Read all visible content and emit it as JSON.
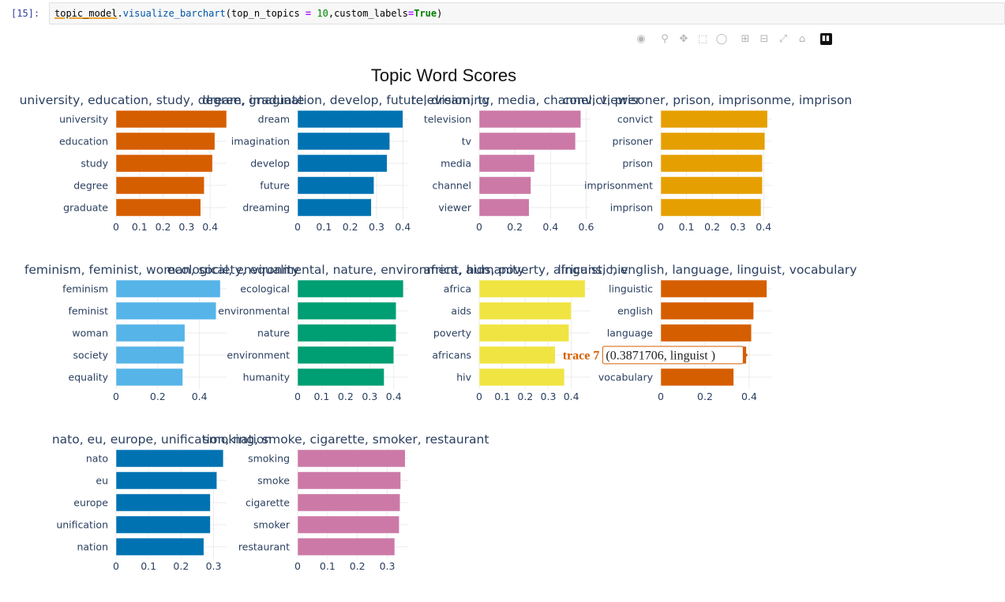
{
  "cell": {
    "prompt": "[15]:",
    "code_var": "topic_model",
    "code_dot": ".",
    "code_fn": "visualize_barchart",
    "code_arg1": "(top_n_topics ",
    "code_eq1": "=",
    "code_num": " 10",
    "code_arg2": ",custom_labels",
    "code_eq2": "=",
    "code_true": "True",
    "code_close": ")"
  },
  "modebar": {
    "icons": [
      "camera-icon",
      "zoom-icon",
      "pan-icon",
      "box-select-icon",
      "lasso-icon",
      "zoom-in-icon",
      "zoom-out-icon",
      "autoscale-icon",
      "reset-axes-icon",
      "plotly-logo-icon"
    ]
  },
  "chart_data": {
    "type": "bar",
    "orientation": "horizontal",
    "title": "Topic Word Scores",
    "grid": true,
    "hover": {
      "trace": "trace 7",
      "text": "(0.3871706, linguist  )"
    },
    "subplots": [
      {
        "subtitle": "university, education, study, degree, graduate",
        "color": "#D55E00",
        "words": [
          "university",
          "education",
          "study",
          "degree",
          "graduate"
        ],
        "values": [
          0.47,
          0.42,
          0.41,
          0.375,
          0.36
        ],
        "xlim": [
          0,
          0.47
        ],
        "xticks": [
          "0",
          "0.1",
          "0.2",
          "0.3",
          "0.4"
        ],
        "xtick_values": [
          0,
          0.1,
          0.2,
          0.3,
          0.4
        ]
      },
      {
        "subtitle": "dream, imagination, develop, future, dreaming",
        "color": "#0072B2",
        "words": [
          "dream",
          "imagination",
          "develop",
          "future",
          "dreaming"
        ],
        "values": [
          0.4,
          0.35,
          0.34,
          0.29,
          0.28
        ],
        "xlim": [
          0,
          0.42
        ],
        "xticks": [
          "0",
          "0.1",
          "0.2",
          "0.3",
          "0.4"
        ],
        "xtick_values": [
          0,
          0.1,
          0.2,
          0.3,
          0.4
        ]
      },
      {
        "subtitle": "television, tv, media, channel, viewer",
        "color": "#CC79A7",
        "words": [
          "television",
          "tv",
          "media",
          "channel",
          "viewer"
        ],
        "values": [
          0.57,
          0.54,
          0.31,
          0.29,
          0.28
        ],
        "xlim": [
          0,
          0.62
        ],
        "xticks": [
          "0",
          "0.2",
          "0.4",
          "0.6"
        ],
        "xtick_values": [
          0,
          0.2,
          0.4,
          0.6
        ]
      },
      {
        "subtitle": "convict, prisoner, prison, imprisonme, imprison",
        "color": "#E69F00",
        "words": [
          "convict",
          "prisoner",
          "prison",
          "imprisonment",
          "imprison"
        ],
        "values": [
          0.415,
          0.405,
          0.395,
          0.395,
          0.39
        ],
        "xlim": [
          0,
          0.43
        ],
        "xticks": [
          "0",
          "0.1",
          "0.2",
          "0.3",
          "0.4"
        ],
        "xtick_values": [
          0,
          0.1,
          0.2,
          0.3,
          0.4
        ]
      },
      {
        "subtitle": "feminism, feminist, woman, society, equality",
        "color": "#56B4E9",
        "words": [
          "feminism",
          "feminist",
          "woman",
          "society",
          "equality"
        ],
        "values": [
          0.5,
          0.48,
          0.33,
          0.325,
          0.32
        ],
        "xlim": [
          0,
          0.53
        ],
        "xticks": [
          "0",
          "0.2",
          "0.4"
        ],
        "xtick_values": [
          0,
          0.2,
          0.4
        ]
      },
      {
        "subtitle": "ecological, environmental, nature, environment, humanity",
        "color": "#009E73",
        "words": [
          "ecological",
          "environmental",
          "nature",
          "environment",
          "humanity"
        ],
        "values": [
          0.44,
          0.41,
          0.41,
          0.4,
          0.36
        ],
        "xlim": [
          0,
          0.46
        ],
        "xticks": [
          "0",
          "0.1",
          "0.2",
          "0.3",
          "0.4"
        ],
        "xtick_values": [
          0,
          0.1,
          0.2,
          0.3,
          0.4
        ]
      },
      {
        "subtitle": "africa, aids, poverty, africans, hiv",
        "color": "#F0E442",
        "words": [
          "africa",
          "aids",
          "poverty",
          "africans",
          "hiv"
        ],
        "values": [
          0.46,
          0.4,
          0.39,
          0.33,
          0.37
        ],
        "xlim": [
          0,
          0.48
        ],
        "xticks": [
          "0",
          "0.1",
          "0.2",
          "0.3",
          "0.4"
        ],
        "xtick_values": [
          0,
          0.1,
          0.2,
          0.3,
          0.4
        ]
      },
      {
        "subtitle": "linguistic, english, language, linguist, vocabulary",
        "color": "#D55E00",
        "words": [
          "linguistic",
          "english",
          "language",
          "linguist",
          "vocabulary"
        ],
        "values": [
          0.48,
          0.42,
          0.41,
          0.387,
          0.33
        ],
        "xlim": [
          0,
          0.5
        ],
        "xticks": [
          "0",
          "0.2",
          "0.4"
        ],
        "xtick_values": [
          0,
          0.2,
          0.4
        ]
      },
      {
        "subtitle": "nato, eu, europe, unification, nation",
        "color": "#0072B2",
        "words": [
          "nato",
          "eu",
          "europe",
          "unification",
          "nation"
        ],
        "values": [
          0.33,
          0.31,
          0.29,
          0.29,
          0.27
        ],
        "xlim": [
          0,
          0.34
        ],
        "xticks": [
          "0",
          "0.1",
          "0.2",
          "0.3"
        ],
        "xtick_values": [
          0,
          0.1,
          0.2,
          0.3
        ]
      },
      {
        "subtitle": "smoking, smoke, cigarette, smoker, restaurant",
        "color": "#CC79A7",
        "words": [
          "smoking",
          "smoke",
          "cigarette",
          "smoker",
          "restaurant"
        ],
        "values": [
          0.36,
          0.345,
          0.343,
          0.34,
          0.325
        ],
        "xlim": [
          0,
          0.37
        ],
        "xticks": [
          "0",
          "0.1",
          "0.2",
          "0.3"
        ],
        "xtick_values": [
          0,
          0.1,
          0.2,
          0.3
        ]
      }
    ]
  }
}
